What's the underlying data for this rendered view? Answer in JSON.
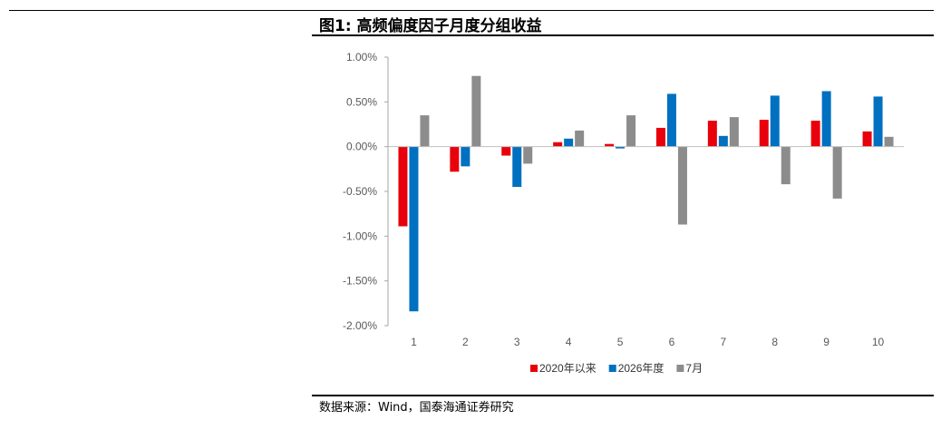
{
  "figure": {
    "title": "图1:  高频偏度因子月度分组收益",
    "source": "数据来源：Wind，国泰海通证券研究"
  },
  "colors": {
    "series_1": "#e8000b",
    "series_2": "#0070c0",
    "series_3": "#8c8c8c",
    "axis": "#a6a6a6",
    "zero_line": "#bfbfbf"
  },
  "chart_data": {
    "type": "bar",
    "categories": [
      "1",
      "2",
      "3",
      "4",
      "5",
      "6",
      "7",
      "8",
      "9",
      "10"
    ],
    "series": [
      {
        "name": "2020年以来",
        "values": [
          -0.89,
          -0.28,
          -0.1,
          0.05,
          0.03,
          0.21,
          0.29,
          0.3,
          0.29,
          0.17
        ]
      },
      {
        "name": "2026年度",
        "values": [
          -1.84,
          -0.22,
          -0.45,
          0.09,
          -0.02,
          0.59,
          0.12,
          0.57,
          0.62,
          0.56
        ]
      },
      {
        "name": "7月",
        "values": [
          0.35,
          0.79,
          -0.19,
          0.18,
          0.35,
          -0.87,
          0.33,
          -0.42,
          -0.58,
          0.11
        ]
      }
    ],
    "ytick_labels": [
      "1.00%",
      "0.50%",
      "0.00%",
      "-0.50%",
      "-1.00%",
      "-1.50%",
      "-2.00%"
    ],
    "yticks": [
      1.0,
      0.5,
      0.0,
      -0.5,
      -1.0,
      -1.5,
      -2.0
    ],
    "ylim": [
      -2.0,
      1.0
    ],
    "legend_position": "bottom",
    "grid": false
  }
}
